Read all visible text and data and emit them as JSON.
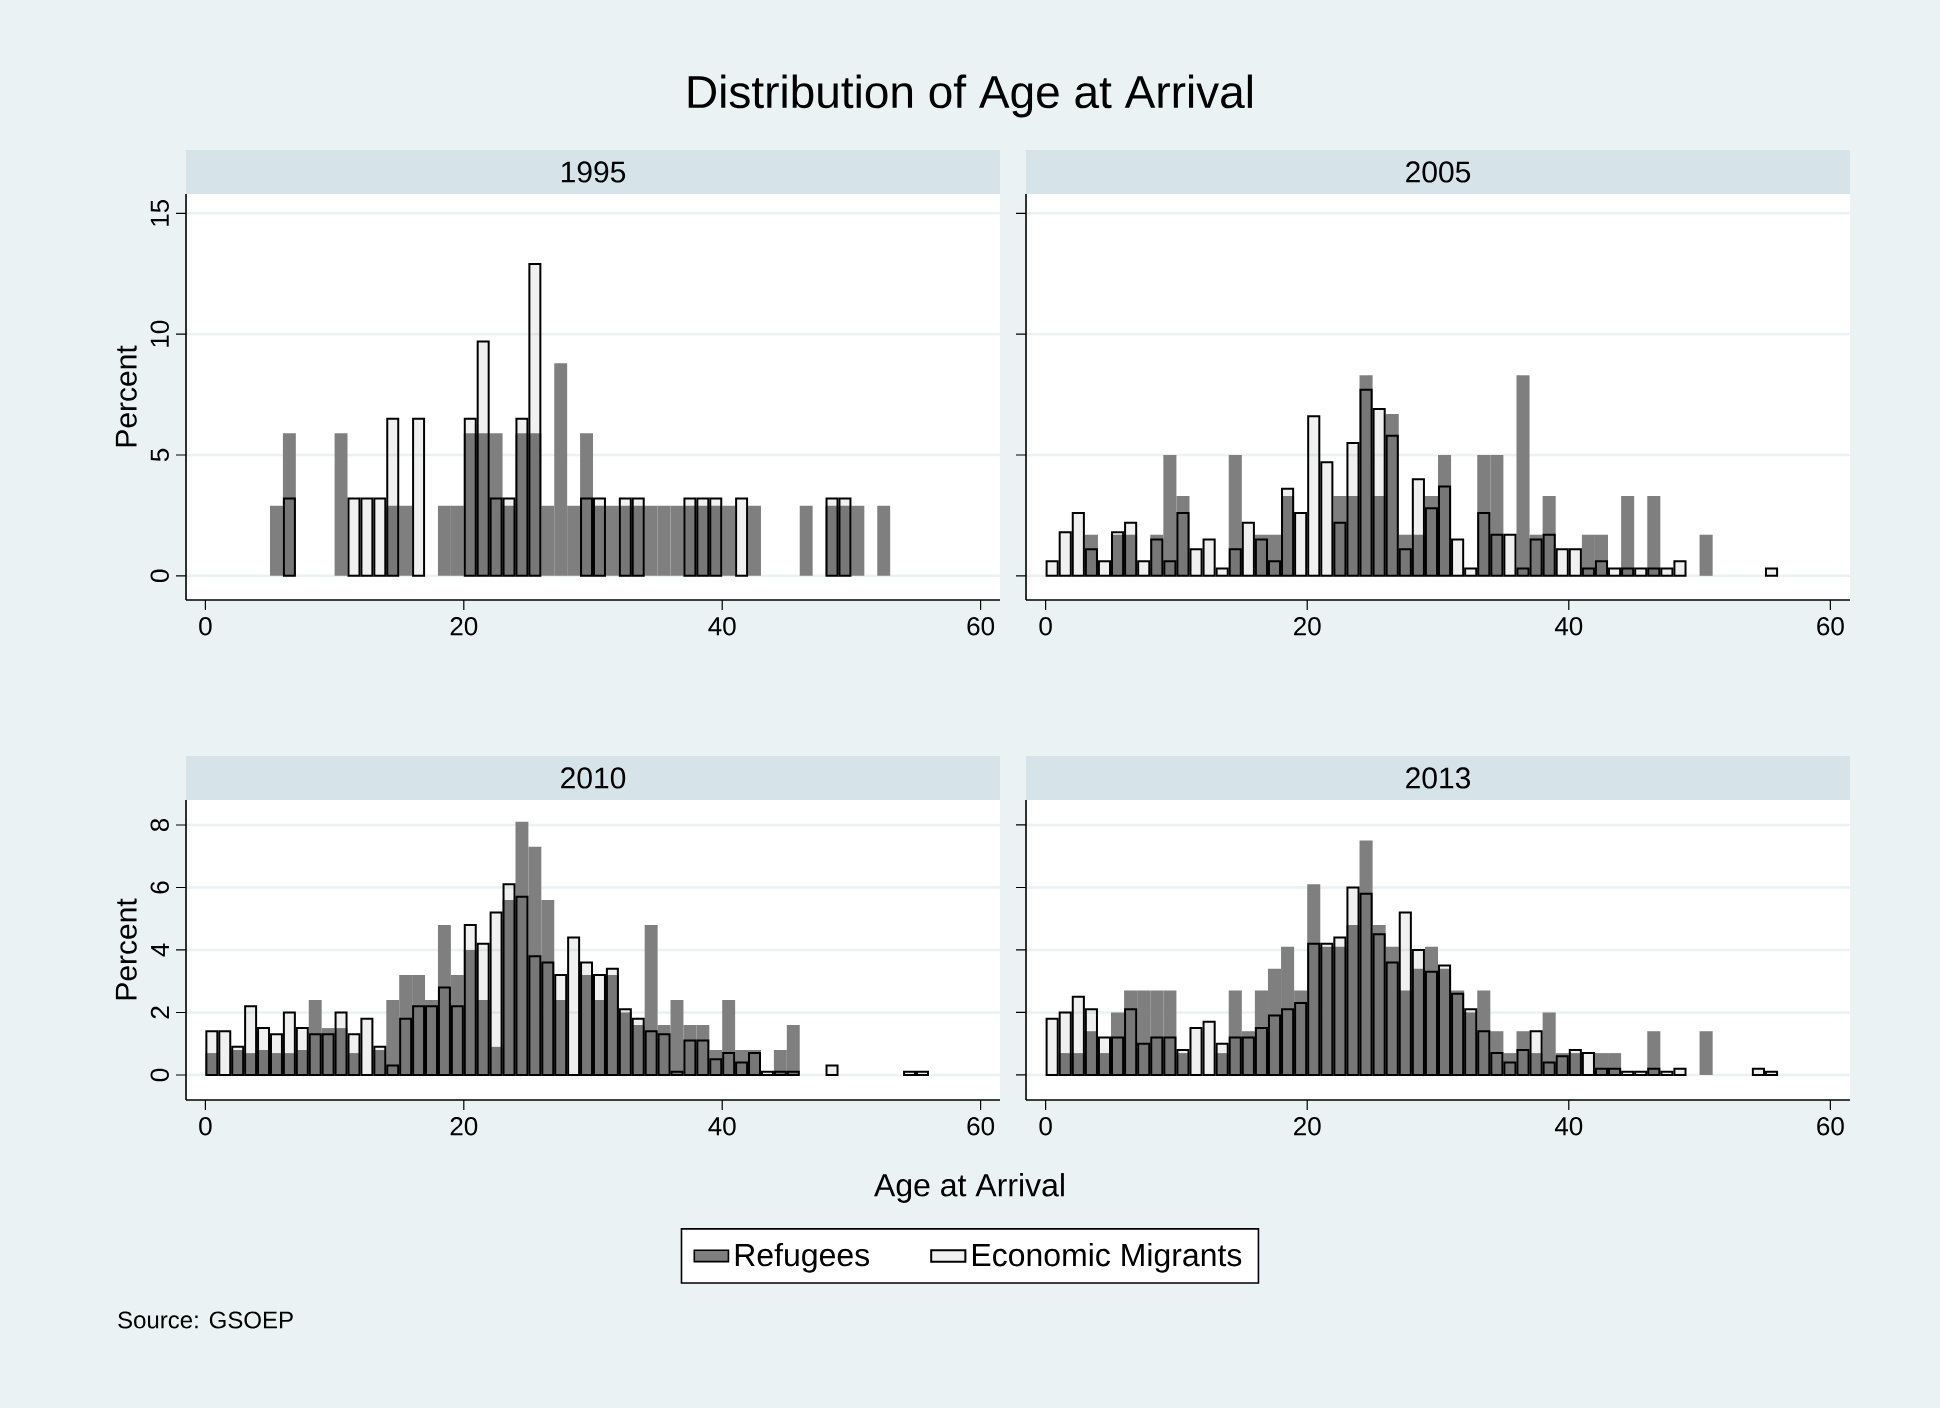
{
  "chart_data": [
    {
      "type": "histogram",
      "title": "Distribution of Age at Arrival",
      "subtitle": "1995",
      "ylabel": "Percent",
      "annotations": [
        "Source: GSOEP"
      ],
      "bins": [
        0,
        1,
        2,
        3,
        4,
        5,
        6,
        7,
        8,
        9,
        10,
        11,
        12,
        13,
        14,
        15,
        16,
        17,
        18,
        19,
        20,
        21,
        22,
        23,
        24,
        25,
        26,
        27,
        28,
        29,
        30,
        31,
        32,
        33,
        34,
        35,
        36,
        37,
        38,
        39,
        40,
        41,
        42,
        43,
        44,
        45,
        46,
        47,
        48,
        49,
        50,
        51,
        52,
        53,
        54,
        55,
        56,
        57
      ],
      "series": [
        {
          "color": "#7f7f7f",
          "values": [
            0,
            0,
            0,
            0,
            0,
            2.9,
            5.9,
            0,
            0,
            0,
            5.9,
            0,
            0,
            0,
            2.9,
            2.9,
            0,
            0,
            2.9,
            2.9,
            5.9,
            5.9,
            5.9,
            2.9,
            5.9,
            5.9,
            2.9,
            8.8,
            2.9,
            5.9,
            2.9,
            2.9,
            2.9,
            2.9,
            2.9,
            2.9,
            2.9,
            2.9,
            2.9,
            2.9,
            2.9,
            0,
            2.9,
            0,
            0,
            0,
            2.9,
            0,
            2.9,
            2.9,
            2.9,
            0,
            2.9,
            0,
            0,
            0,
            0
          ]
        },
        {
          "color": "#000000",
          "values": [
            0,
            0,
            0,
            0,
            0,
            0,
            3.2,
            0,
            0,
            0,
            0,
            3.2,
            3.2,
            3.2,
            6.5,
            0,
            6.5,
            0,
            0,
            0,
            6.5,
            9.7,
            3.2,
            3.2,
            6.5,
            12.9,
            0,
            0,
            0,
            3.2,
            3.2,
            0,
            3.2,
            3.2,
            0,
            0,
            0,
            3.2,
            3.2,
            3.2,
            0,
            3.2,
            0,
            0,
            0,
            0,
            0,
            0,
            3.2,
            3.2,
            0,
            0,
            0,
            0,
            0,
            0,
            0
          ]
        }
      ],
      "xlim": [
        -1.5,
        61.5
      ],
      "xticks": [
        0,
        20,
        40,
        60
      ],
      "ylim": [
        -1,
        15.8
      ],
      "yticks": [
        0,
        5,
        10,
        15
      ],
      "grid": "y"
    },
    {
      "type": "histogram",
      "subtitle": "2005",
      "tick_labels": "x",
      "bins": [
        0,
        1,
        2,
        3,
        4,
        5,
        6,
        7,
        8,
        9,
        10,
        11,
        12,
        13,
        14,
        15,
        16,
        17,
        18,
        19,
        20,
        21,
        22,
        23,
        24,
        25,
        26,
        27,
        28,
        29,
        30,
        31,
        32,
        33,
        34,
        35,
        36,
        37,
        38,
        39,
        40,
        41,
        42,
        43,
        44,
        45,
        46,
        47,
        48,
        49,
        50,
        51,
        52,
        53,
        54,
        55,
        56,
        57
      ],
      "series": [
        {
          "color": "#7f7f7f",
          "values": [
            0,
            0,
            0,
            1.7,
            0,
            1.7,
            1.7,
            0,
            1.7,
            5.0,
            3.3,
            0,
            0,
            0,
            5.0,
            0,
            1.7,
            1.7,
            3.3,
            0,
            0,
            0,
            3.3,
            3.3,
            8.3,
            3.3,
            6.7,
            1.7,
            1.7,
            3.3,
            5.0,
            0,
            0,
            5.0,
            5.0,
            0,
            8.3,
            1.7,
            3.3,
            0,
            0,
            1.7,
            1.7,
            0,
            3.3,
            0,
            3.3,
            0,
            0,
            0,
            1.7,
            0,
            0,
            0,
            0,
            0,
            0
          ]
        },
        {
          "color": "#000000",
          "values": [
            0.6,
            1.8,
            2.6,
            1.1,
            0.6,
            1.8,
            2.2,
            0.6,
            1.5,
            0.6,
            2.6,
            1.1,
            1.5,
            0.3,
            1.1,
            2.2,
            1.5,
            0.6,
            3.6,
            2.6,
            6.6,
            4.7,
            2.2,
            5.5,
            7.7,
            6.9,
            5.8,
            1.1,
            4.0,
            2.8,
            3.7,
            1.5,
            0.3,
            2.6,
            1.7,
            1.7,
            0.3,
            1.5,
            1.7,
            1.1,
            1.1,
            0.3,
            0.6,
            0.3,
            0.3,
            0.3,
            0.3,
            0.3,
            0.6,
            0,
            0,
            0,
            0,
            0,
            0,
            0.3,
            0
          ]
        }
      ],
      "xlim": [
        -1.5,
        61.5
      ],
      "xticks": [
        0,
        20,
        40,
        60
      ],
      "ylim": [
        -1,
        15.8
      ],
      "yticks": [
        0,
        5,
        10,
        15
      ],
      "grid": "y"
    },
    {
      "type": "histogram",
      "subtitle": "2010",
      "ylabel": "Percent",
      "xlabel": "Age at Arrival",
      "legend": "bottom",
      "bins": [
        0,
        1,
        2,
        3,
        4,
        5,
        6,
        7,
        8,
        9,
        10,
        11,
        12,
        13,
        14,
        15,
        16,
        17,
        18,
        19,
        20,
        21,
        22,
        23,
        24,
        25,
        26,
        27,
        28,
        29,
        30,
        31,
        32,
        33,
        34,
        35,
        36,
        37,
        38,
        39,
        40,
        41,
        42,
        43,
        44,
        45,
        46,
        47,
        48,
        49,
        50,
        51,
        52,
        53,
        54,
        55,
        56,
        57
      ],
      "series": [
        {
          "name": "Refugees",
          "color": "#7f7f7f",
          "values": [
            0.7,
            0,
            0.8,
            0.7,
            0.8,
            0.7,
            0.7,
            0.8,
            2.4,
            1.5,
            1.5,
            0.7,
            0,
            0.8,
            2.4,
            3.2,
            3.2,
            2.4,
            4.8,
            3.2,
            4.0,
            2.4,
            0.9,
            5.6,
            8.1,
            7.3,
            5.6,
            2.4,
            0,
            3.2,
            2.4,
            3.2,
            2.0,
            1.6,
            4.8,
            1.6,
            2.4,
            1.6,
            1.6,
            0.8,
            2.4,
            0.8,
            0.8,
            0,
            0.8,
            1.6,
            0,
            0,
            0,
            0,
            0,
            0,
            0,
            0,
            0,
            0,
            0
          ]
        },
        {
          "name": "Economic Migrants",
          "color": "#000000",
          "values": [
            1.4,
            1.4,
            0.9,
            2.2,
            1.5,
            1.3,
            2.0,
            1.5,
            1.3,
            1.3,
            2.0,
            1.3,
            1.8,
            0.9,
            0.3,
            1.8,
            2.2,
            2.2,
            2.8,
            2.2,
            4.8,
            4.2,
            5.2,
            6.1,
            5.7,
            3.8,
            3.6,
            3.2,
            4.4,
            3.6,
            3.2,
            3.4,
            2.1,
            1.8,
            1.4,
            1.3,
            0.1,
            1.1,
            1.1,
            0.5,
            0.7,
            0.4,
            0.7,
            0.1,
            0.1,
            0.1,
            0,
            0,
            0.3,
            0,
            0,
            0,
            0,
            0,
            0.1,
            0.1,
            0
          ]
        }
      ],
      "xlim": [
        -1.5,
        61.5
      ],
      "xticks": [
        0,
        20,
        40,
        60
      ],
      "ylim": [
        -0.8,
        8.8
      ],
      "yticks": [
        0,
        2,
        4,
        6,
        8
      ],
      "grid": "y"
    },
    {
      "type": "histogram",
      "subtitle": "2013",
      "tick_labels": "x",
      "bins": [
        0,
        1,
        2,
        3,
        4,
        5,
        6,
        7,
        8,
        9,
        10,
        11,
        12,
        13,
        14,
        15,
        16,
        17,
        18,
        19,
        20,
        21,
        22,
        23,
        24,
        25,
        26,
        27,
        28,
        29,
        30,
        31,
        32,
        33,
        34,
        35,
        36,
        37,
        38,
        39,
        40,
        41,
        42,
        43,
        44,
        45,
        46,
        47,
        48,
        49,
        50,
        51,
        52,
        53,
        54,
        55,
        56,
        57
      ],
      "series": [
        {
          "color": "#7f7f7f",
          "values": [
            0,
            0.7,
            0.7,
            1.4,
            0.7,
            2.0,
            2.7,
            2.7,
            2.7,
            2.7,
            0.7,
            0,
            0,
            0.7,
            2.7,
            1.4,
            2.7,
            3.4,
            4.1,
            2.7,
            6.1,
            4.1,
            4.1,
            4.8,
            7.5,
            4.8,
            4.1,
            2.7,
            3.4,
            4.1,
            3.4,
            2.7,
            2.0,
            2.7,
            1.4,
            0.7,
            1.4,
            0.7,
            2.0,
            0.7,
            0.7,
            0,
            0.7,
            0.7,
            0,
            0,
            1.4,
            0,
            0,
            0,
            1.4,
            0,
            0,
            0,
            0,
            0,
            0
          ]
        },
        {
          "color": "#000000",
          "values": [
            1.8,
            2.0,
            2.5,
            2.1,
            1.2,
            1.2,
            2.1,
            1.0,
            1.2,
            1.2,
            0.8,
            1.5,
            1.7,
            1.0,
            1.2,
            1.2,
            1.5,
            1.9,
            2.1,
            2.3,
            4.2,
            4.2,
            4.4,
            6.0,
            5.8,
            4.5,
            3.6,
            5.2,
            4.0,
            3.3,
            3.5,
            2.6,
            2.1,
            1.4,
            0.7,
            0.4,
            0.8,
            1.4,
            0.4,
            0.6,
            0.8,
            0.7,
            0.2,
            0.2,
            0.1,
            0.1,
            0.2,
            0.1,
            0.2,
            0,
            0,
            0,
            0,
            0,
            0.2,
            0.1,
            0
          ]
        }
      ],
      "xlim": [
        -1.5,
        61.5
      ],
      "xticks": [
        0,
        20,
        40,
        60
      ],
      "ylim": [
        -0.8,
        8.8
      ],
      "yticks": [
        0,
        2,
        4,
        6,
        8
      ],
      "grid": "y"
    }
  ]
}
